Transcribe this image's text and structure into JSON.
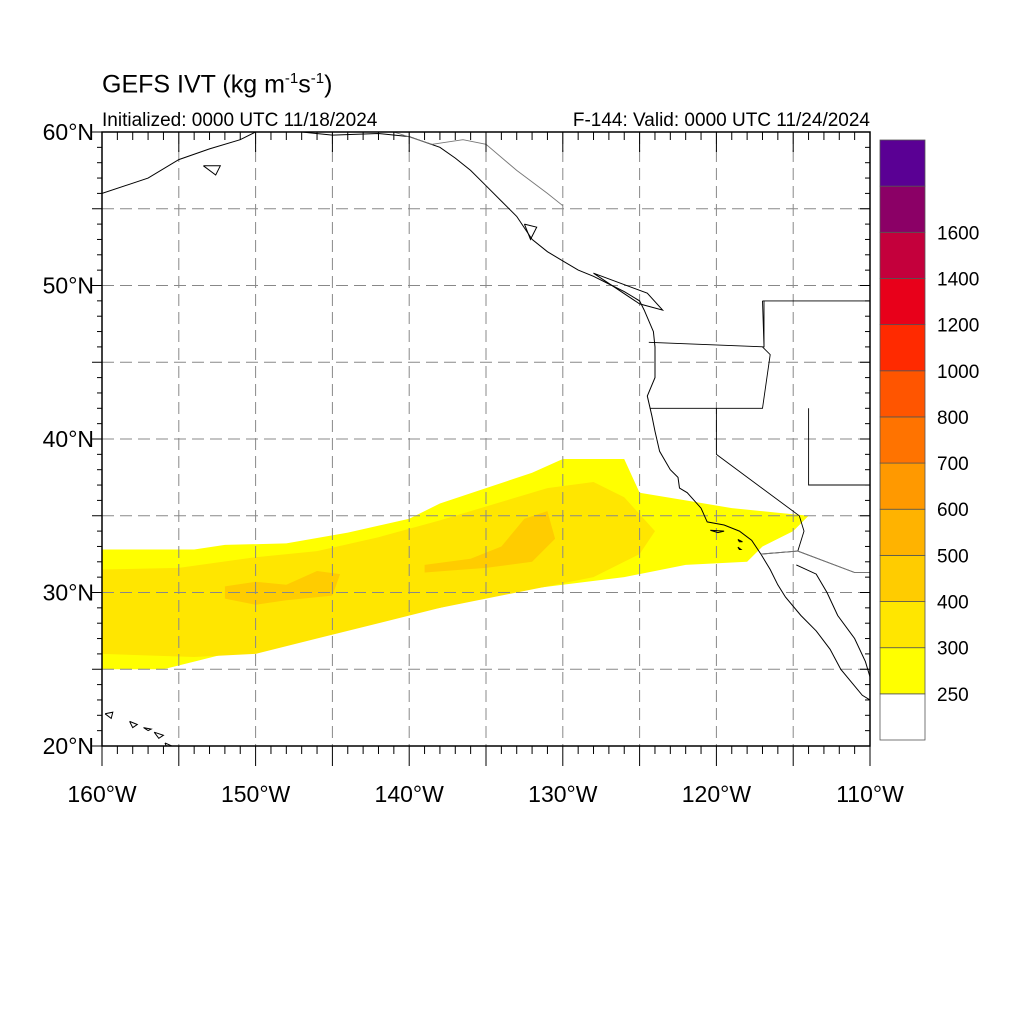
{
  "title": {
    "prefix": "GEFS IVT (kg m",
    "exp1": "-1",
    "mid": "s",
    "exp2": "-1",
    "suffix": ")"
  },
  "subtitle_left": "Initialized: 0000 UTC 11/18/2024",
  "subtitle_right": "F-144: Valid: 0000 UTC 11/24/2024",
  "x_axis": {
    "range": [
      -160,
      -110
    ],
    "ticks": [
      {
        "value": -160,
        "label": "160°W"
      },
      {
        "value": -150,
        "label": "150°W"
      },
      {
        "value": -140,
        "label": "140°W"
      },
      {
        "value": -130,
        "label": "130°W"
      },
      {
        "value": -120,
        "label": "120°W"
      },
      {
        "value": -110,
        "label": "110°W"
      }
    ]
  },
  "y_axis": {
    "range": [
      20,
      60
    ],
    "ticks": [
      {
        "value": 60,
        "label": "60°N"
      },
      {
        "value": 50,
        "label": "50°N"
      },
      {
        "value": 40,
        "label": "40°N"
      },
      {
        "value": 30,
        "label": "30°N"
      },
      {
        "value": 20,
        "label": "20°N"
      }
    ]
  },
  "gridlines": {
    "lon": [
      -155,
      -150,
      -145,
      -140,
      -135,
      -130,
      -125,
      -120,
      -115
    ],
    "lat": [
      25,
      30,
      35,
      40,
      45,
      50,
      55
    ]
  },
  "colorbar": {
    "bins": [
      {
        "color": "#ffffff"
      },
      {
        "color": "#ffff00",
        "label": "250"
      },
      {
        "color": "#ffe600",
        "label": "300"
      },
      {
        "color": "#ffcc00",
        "label": "400"
      },
      {
        "color": "#ffb300",
        "label": "500"
      },
      {
        "color": "#ff9900",
        "label": "600"
      },
      {
        "color": "#ff7300",
        "label": "700"
      },
      {
        "color": "#ff5500",
        "label": "800"
      },
      {
        "color": "#ff2a00",
        "label": "1000"
      },
      {
        "color": "#e8001a",
        "label": "1200"
      },
      {
        "color": "#c4003c",
        "label": "1400"
      },
      {
        "color": "#8b0066",
        "label": "1600"
      },
      {
        "color": "#5a0094"
      }
    ]
  },
  "ivt_field": [
    {
      "level": 1,
      "polygon": [
        [
          -160,
          32.8
        ],
        [
          -154,
          32.8
        ],
        [
          -152,
          33.1
        ],
        [
          -148,
          33.2
        ],
        [
          -144,
          33.9
        ],
        [
          -140,
          34.8
        ],
        [
          -138,
          35.8
        ],
        [
          -135,
          36.8
        ],
        [
          -132,
          37.8
        ],
        [
          -130,
          38.7
        ],
        [
          -126,
          38.7
        ],
        [
          -125,
          36.5
        ],
        [
          -122,
          36.0
        ],
        [
          -119,
          35.5
        ],
        [
          -116,
          35.2
        ],
        [
          -114,
          35.0
        ],
        [
          -115,
          34.0
        ],
        [
          -117,
          33.0
        ],
        [
          -118,
          32.0
        ],
        [
          -122,
          31.8
        ],
        [
          -126,
          31.0
        ],
        [
          -130,
          30.5
        ],
        [
          -134,
          30.0
        ],
        [
          -138,
          29.0
        ],
        [
          -142,
          28.3
        ],
        [
          -146,
          27.5
        ],
        [
          -150,
          26.5
        ],
        [
          -154,
          25.5
        ],
        [
          -156,
          25.0
        ],
        [
          -160,
          25.0
        ]
      ]
    },
    {
      "level": 2,
      "polygon": [
        [
          -160,
          31.5
        ],
        [
          -155,
          31.6
        ],
        [
          -150,
          32.3
        ],
        [
          -146,
          32.7
        ],
        [
          -142,
          33.6
        ],
        [
          -138,
          34.7
        ],
        [
          -135,
          35.6
        ],
        [
          -131,
          36.8
        ],
        [
          -128,
          37.2
        ],
        [
          -126,
          36.2
        ],
        [
          -124,
          34.0
        ],
        [
          -125,
          32.5
        ],
        [
          -128,
          31.0
        ],
        [
          -133,
          30.0
        ],
        [
          -138,
          29.0
        ],
        [
          -142,
          28.0
        ],
        [
          -146,
          27.0
        ],
        [
          -150,
          26.0
        ],
        [
          -154,
          25.8
        ],
        [
          -160,
          26.0
        ]
      ]
    },
    {
      "level": 3,
      "polygon": [
        [
          -152,
          30.4
        ],
        [
          -150,
          30.7
        ],
        [
          -148,
          30.5
        ],
        [
          -146,
          31.4
        ],
        [
          -144.5,
          31.2
        ],
        [
          -145,
          29.8
        ],
        [
          -148,
          29.5
        ],
        [
          -150,
          29.2
        ],
        [
          -152,
          29.6
        ]
      ]
    },
    {
      "level": 3,
      "polygon": [
        [
          -139,
          31.8
        ],
        [
          -136,
          32.2
        ],
        [
          -134,
          33.0
        ],
        [
          -132.5,
          34.8
        ],
        [
          -131,
          35.3
        ],
        [
          -130.5,
          33.5
        ],
        [
          -132,
          32.0
        ],
        [
          -135,
          31.6
        ],
        [
          -139,
          31.3
        ]
      ]
    }
  ],
  "states": [
    [
      [
        -124.4,
        46.3
      ],
      [
        -116.9,
        46.0
      ],
      [
        -117.0,
        49.0
      ]
    ],
    [
      [
        -124.3,
        42.0
      ],
      [
        -117.0,
        42.0
      ],
      [
        -116.5,
        45.5
      ],
      [
        -117.0,
        46.0
      ]
    ],
    [
      [
        -120.0,
        42.0
      ],
      [
        -120.0,
        39.0
      ],
      [
        -114.6,
        35.0
      ]
    ],
    [
      [
        -114.0,
        42.0
      ],
      [
        -114.0,
        37.0
      ],
      [
        -109.0,
        37.0
      ]
    ],
    [
      [
        -114.6,
        35.0
      ],
      [
        -114.3,
        34.0
      ],
      [
        -114.7,
        32.7
      ],
      [
        -111.0,
        31.3
      ]
    ],
    [
      [
        -117.1,
        32.5
      ],
      [
        -114.7,
        32.7
      ]
    ],
    [
      [
        -117.0,
        49.0
      ],
      [
        -110.0,
        49.0
      ]
    ],
    [
      [
        -116.9,
        49.0
      ],
      [
        -116.9,
        47.5
      ],
      [
        -116.9,
        46.0
      ]
    ]
  ],
  "coastlines": [
    [
      [
        -160,
        56.0
      ],
      [
        -157,
        57.0
      ],
      [
        -155,
        58.2
      ],
      [
        -153,
        58.9
      ],
      [
        -151,
        59.5
      ],
      [
        -150,
        60.0
      ]
    ],
    [
      [
        -147,
        60.0
      ],
      [
        -145,
        59.8
      ],
      [
        -142,
        59.9
      ],
      [
        -140,
        59.7
      ],
      [
        -138,
        59.0
      ],
      [
        -137,
        58.3
      ],
      [
        -136,
        57.5
      ],
      [
        -135,
        56.5
      ],
      [
        -134,
        55.5
      ],
      [
        -133,
        54.5
      ],
      [
        -132,
        53.0
      ],
      [
        -131,
        52.2
      ],
      [
        -130,
        51.6
      ],
      [
        -129,
        51.0
      ],
      [
        -128,
        50.6
      ],
      [
        -127,
        50.1
      ],
      [
        -126,
        49.6
      ],
      [
        -125,
        49.0
      ],
      [
        -124.7,
        48.4
      ],
      [
        -124.1,
        47.0
      ],
      [
        -124.0,
        46.0
      ],
      [
        -124.0,
        44.0
      ],
      [
        -124.5,
        42.8
      ],
      [
        -124.2,
        41.5
      ],
      [
        -124.0,
        40.5
      ],
      [
        -123.7,
        39.2
      ],
      [
        -123.0,
        38.0
      ],
      [
        -122.5,
        37.5
      ],
      [
        -122.4,
        36.8
      ],
      [
        -121.9,
        36.5
      ],
      [
        -121.0,
        35.5
      ],
      [
        -120.6,
        34.6
      ],
      [
        -119.5,
        34.4
      ],
      [
        -118.5,
        34.0
      ],
      [
        -117.7,
        33.4
      ],
      [
        -117.1,
        32.5
      ],
      [
        -116.5,
        31.5
      ],
      [
        -116.0,
        30.5
      ],
      [
        -115.5,
        29.7
      ],
      [
        -114.5,
        28.5
      ],
      [
        -113.5,
        27.5
      ],
      [
        -112.6,
        26.3
      ],
      [
        -111.9,
        25.0
      ],
      [
        -110.5,
        23.3
      ],
      [
        -110.0,
        23.0
      ]
    ],
    [
      [
        -114.8,
        31.8
      ],
      [
        -113.5,
        31.2
      ],
      [
        -112.8,
        30.0
      ],
      [
        -112.1,
        28.5
      ],
      [
        -111.0,
        27.0
      ],
      [
        -110.3,
        25.5
      ],
      [
        -110.0,
        24.5
      ]
    ]
  ],
  "borders": [
    [
      [
        -141,
        60.0
      ],
      [
        -138.5,
        59.2
      ],
      [
        -136.5,
        59.5
      ],
      [
        -135.0,
        59.2
      ],
      [
        -133.0,
        57.5
      ],
      [
        -131.0,
        56.0
      ],
      [
        -130.0,
        55.2
      ]
    ],
    [
      [
        -117.1,
        32.5
      ],
      [
        -114.7,
        32.7
      ],
      [
        -111.0,
        31.3
      ],
      [
        -110.0,
        31.3
      ]
    ]
  ],
  "islands": [
    [
      [
        -159.8,
        22.1
      ],
      [
        -159.3,
        22.2
      ],
      [
        -159.4,
        21.8
      ],
      [
        -159.8,
        22.1
      ]
    ],
    [
      [
        -158.2,
        21.6
      ],
      [
        -157.7,
        21.4
      ],
      [
        -158.0,
        21.2
      ],
      [
        -158.2,
        21.6
      ]
    ],
    [
      [
        -157.3,
        21.2
      ],
      [
        -156.8,
        21.1
      ],
      [
        -157.0,
        21.0
      ],
      [
        -157.3,
        21.2
      ]
    ],
    [
      [
        -156.6,
        20.9
      ],
      [
        -156.0,
        20.7
      ],
      [
        -156.3,
        20.5
      ],
      [
        -156.6,
        20.9
      ]
    ],
    [
      [
        -155.9,
        20.2
      ],
      [
        -155.0,
        19.8
      ],
      [
        -155.5,
        19.2
      ],
      [
        -155.9,
        20.2
      ]
    ],
    [
      [
        -153.4,
        57.8
      ],
      [
        -152.3,
        57.8
      ],
      [
        -152.6,
        57.2
      ],
      [
        -153.4,
        57.8
      ]
    ],
    [
      [
        -132.5,
        54.0
      ],
      [
        -131.7,
        53.8
      ],
      [
        -132.1,
        53.0
      ],
      [
        -132.5,
        54.0
      ]
    ],
    [
      [
        -128.0,
        50.8
      ],
      [
        -124.5,
        49.5
      ],
      [
        -123.5,
        48.4
      ],
      [
        -125.0,
        48.8
      ],
      [
        -128.0,
        50.8
      ]
    ],
    [
      [
        -120.4,
        34.05
      ],
      [
        -119.5,
        34.0
      ],
      [
        -119.9,
        33.9
      ],
      [
        -120.4,
        34.05
      ]
    ],
    [
      [
        -118.6,
        33.45
      ],
      [
        -118.3,
        33.3
      ],
      [
        -118.5,
        33.3
      ],
      [
        -118.6,
        33.45
      ]
    ],
    [
      [
        -118.6,
        32.95
      ],
      [
        -118.4,
        32.8
      ],
      [
        -118.5,
        32.8
      ],
      [
        -118.6,
        32.95
      ]
    ]
  ]
}
